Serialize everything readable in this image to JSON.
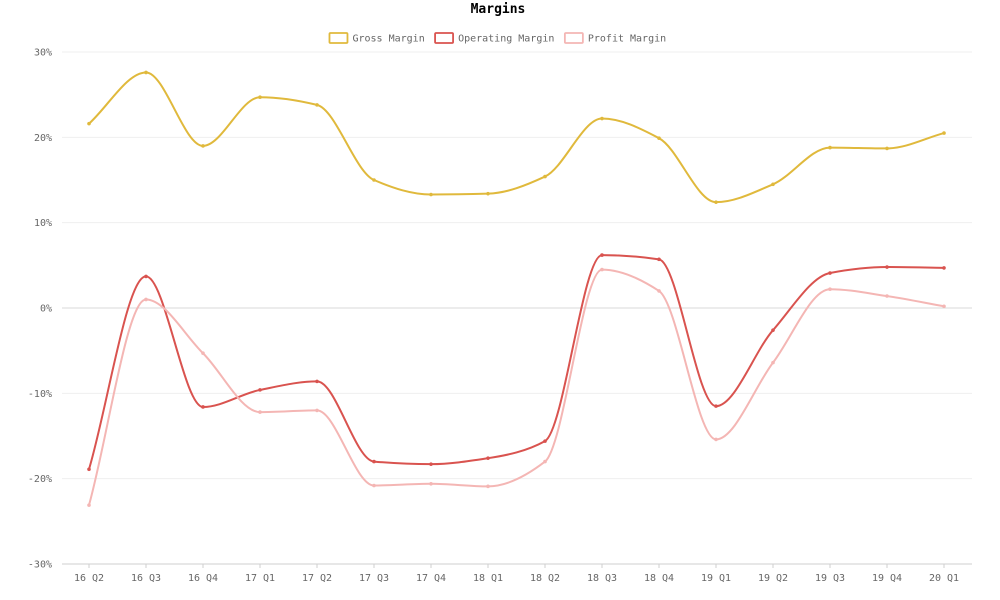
{
  "chart_data": {
    "type": "line",
    "title": "Margins",
    "legend_position": "top-center",
    "grid": true,
    "y_unit_suffix": "%",
    "ylim": [
      -30,
      30
    ],
    "y_ticks": [
      30,
      20,
      10,
      0,
      -10,
      -20,
      -30
    ],
    "categories": [
      "16 Q2",
      "16 Q3",
      "16 Q4",
      "17 Q1",
      "17 Q2",
      "17 Q3",
      "17 Q4",
      "18 Q1",
      "18 Q2",
      "18 Q3",
      "18 Q4",
      "19 Q1",
      "19 Q2",
      "19 Q3",
      "19 Q4",
      "20 Q1"
    ],
    "series": [
      {
        "name": "Gross Margin",
        "color": "#e0b93c",
        "values": [
          21.6,
          27.6,
          19.0,
          24.7,
          23.8,
          15.0,
          13.3,
          13.4,
          15.4,
          22.2,
          19.9,
          12.4,
          14.5,
          18.8,
          18.7,
          20.5
        ]
      },
      {
        "name": "Operating Margin",
        "color": "#d9534f",
        "values": [
          -18.9,
          3.7,
          -11.6,
          -9.6,
          -8.6,
          -18.0,
          -18.3,
          -17.6,
          -15.6,
          6.2,
          5.7,
          -11.5,
          -2.6,
          4.1,
          4.8,
          4.7
        ]
      },
      {
        "name": "Profit Margin",
        "color": "#f4b6b4",
        "values": [
          -23.1,
          1.0,
          -5.3,
          -12.2,
          -12.0,
          -20.8,
          -20.6,
          -20.9,
          -18.0,
          4.5,
          2.0,
          -15.4,
          -6.4,
          2.2,
          1.4,
          0.2
        ]
      }
    ]
  }
}
